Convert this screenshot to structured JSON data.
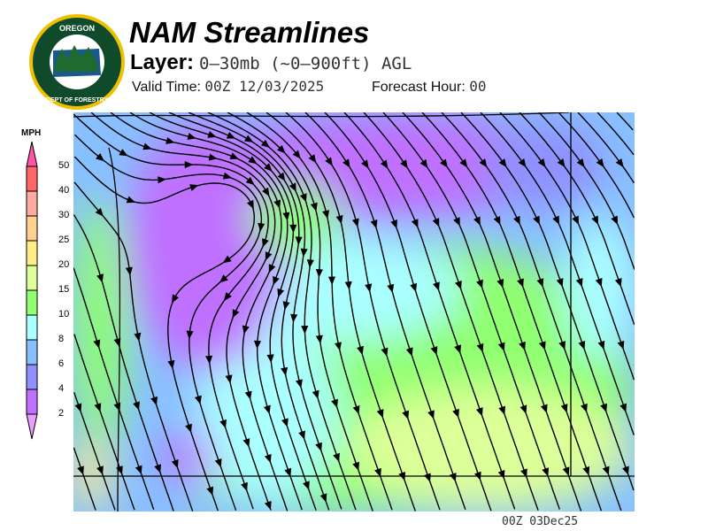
{
  "header": {
    "logo_text": "OREGON DEPARTMENT OF FORESTRY",
    "title": "NAM Streamlines",
    "layer_label": "Layer:",
    "layer_value": "0–30mb (~0–900ft) AGL",
    "valid_label": "Valid Time:",
    "valid_value": "00Z 12/03/2025",
    "forecast_label": "Forecast Hour:",
    "forecast_value": "00"
  },
  "legend": {
    "units": "MPH",
    "ticks": [
      "50",
      "40",
      "30",
      "25",
      "20",
      "15",
      "10",
      "8",
      "6",
      "4",
      "2"
    ],
    "colors": {
      "over": "#ff55aa",
      "40-50": "#ff6666",
      "30-40": "#ffaaa0",
      "25-30": "#ffd090",
      "20-25": "#ffee88",
      "15-20": "#ddff99",
      "10-15": "#90ff70",
      "8-10": "#aaffff",
      "6-8": "#88c0ff",
      "4-6": "#9090ff",
      "2-4": "#c070ff",
      "under": "#e8a0ff"
    }
  },
  "footer": {
    "timestamp": "00Z 03Dec25"
  }
}
